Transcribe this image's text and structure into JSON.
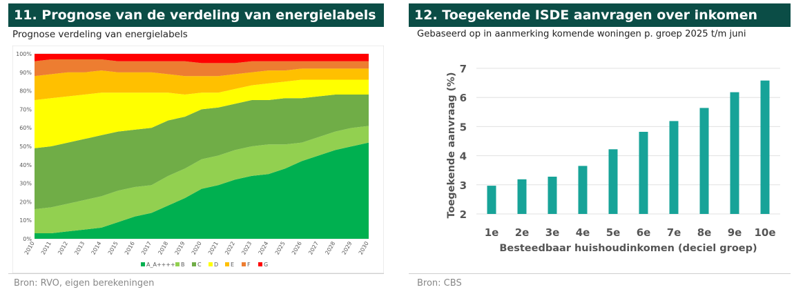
{
  "left": {
    "header": "11.  Prognose van de verdeling van energielabels",
    "subtitle": "Prognose verdeling van energielabels",
    "source": "Bron: RVO, eigen berekeningen"
  },
  "right": {
    "header": "12.  Toegekende ISDE aanvragen over inkomen",
    "subtitle": "Gebaseerd op in aanmerking komende woningen p. groep 2025 t/m juni",
    "source": "Bron: CBS"
  },
  "colors": {
    "header_bg": "#0b4d46",
    "A": "#00b050",
    "B": "#92d050",
    "C": "#70ad47",
    "D": "#ffff00",
    "E": "#ffc000",
    "F": "#ed7d31",
    "G": "#ff0000",
    "bar": "#17a398"
  },
  "chart_data": [
    {
      "type": "area",
      "stacked": true,
      "x": [
        "2010",
        "2011",
        "2012",
        "2013",
        "2014",
        "2015",
        "2016",
        "2017",
        "2018",
        "2019",
        "2020",
        "2021",
        "2022",
        "2023",
        "2024",
        "2025",
        "2026",
        "2027",
        "2028",
        "2029",
        "2030"
      ],
      "yticks": [
        "0%",
        "10%",
        "20%",
        "30%",
        "40%",
        "50%",
        "60%",
        "70%",
        "80%",
        "90%",
        "100%"
      ],
      "ylim": [
        0,
        100
      ],
      "grid": true,
      "legend_position": "bottom",
      "series": [
        {
          "name": "A_A++++",
          "color": "#00b050",
          "values": [
            3,
            3,
            4,
            5,
            6,
            9,
            12,
            14,
            18,
            22,
            27,
            29,
            32,
            34,
            35,
            38,
            42,
            45,
            48,
            50,
            52
          ]
        },
        {
          "name": "B",
          "color": "#92d050",
          "values": [
            13,
            14,
            15,
            16,
            17,
            17,
            16,
            15,
            16,
            16,
            16,
            16,
            16,
            16,
            16,
            13,
            10,
            10,
            10,
            10,
            9
          ]
        },
        {
          "name": "C",
          "color": "#70ad47",
          "values": [
            33,
            33,
            33,
            33,
            33,
            32,
            31,
            31,
            30,
            28,
            27,
            26,
            25,
            25,
            24,
            25,
            24,
            22,
            20,
            18,
            17
          ]
        },
        {
          "name": "D",
          "color": "#ffff00",
          "values": [
            26,
            26,
            25,
            24,
            23,
            21,
            20,
            19,
            15,
            12,
            9,
            8,
            8,
            8,
            9,
            9,
            10,
            9,
            8,
            8,
            8
          ]
        },
        {
          "name": "E",
          "color": "#ffc000",
          "values": [
            13,
            13,
            13,
            12,
            12,
            11,
            11,
            11,
            10,
            10,
            9,
            9,
            8,
            7,
            7,
            6,
            6,
            6,
            6,
            6,
            6
          ]
        },
        {
          "name": "F",
          "color": "#ed7d31",
          "values": [
            8,
            8,
            7,
            7,
            6,
            6,
            6,
            6,
            7,
            8,
            7,
            7,
            6,
            6,
            5,
            5,
            4,
            4,
            4,
            4,
            4
          ]
        },
        {
          "name": "G",
          "color": "#ff0000",
          "values": [
            4,
            3,
            3,
            3,
            3,
            4,
            4,
            4,
            4,
            4,
            5,
            5,
            5,
            4,
            4,
            4,
            4,
            4,
            4,
            4,
            4
          ]
        }
      ]
    },
    {
      "type": "bar",
      "categories": [
        "1e",
        "2e",
        "3e",
        "4e",
        "5e",
        "6e",
        "7e",
        "8e",
        "9e",
        "10e"
      ],
      "values": [
        2.97,
        3.19,
        3.28,
        3.65,
        4.22,
        4.82,
        5.19,
        5.64,
        6.18,
        6.58
      ],
      "ylim": [
        2,
        7
      ],
      "yticks": [
        "2",
        "3",
        "4",
        "5",
        "6",
        "7"
      ],
      "xlabel": "Besteedbaar huishoudinkomen (deciel groep)",
      "ylabel": "Toegekende aanvraag (%)",
      "grid": true
    }
  ]
}
